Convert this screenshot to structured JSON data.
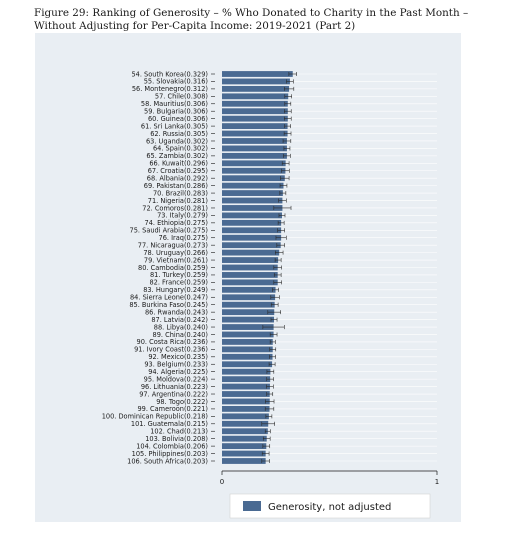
{
  "caption": "Figure 29: Ranking of Generosity – % Who Donated to Charity in the Past Month – Without Adjusting for Per-Capita Income: 2019-2021 (Part 2)",
  "chart_data": {
    "type": "bar",
    "orientation": "horizontal",
    "categories": [
      "54. South Korea(0.329)",
      "55. Slovakia(0.316)",
      "56. Montenegro(0.312)",
      "57. Chile(0.308)",
      "58. Mauritius(0.306)",
      "59. Bulgaria(0.306)",
      "60. Guinea(0.306)",
      "61. Sri Lanka(0.305)",
      "62. Russia(0.305)",
      "63. Uganda(0.302)",
      "64. Spain(0.302)",
      "65. Zambia(0.302)",
      "66. Kuwait(0.296)",
      "67. Croatia(0.295)",
      "68. Albania(0.292)",
      "69. Pakistan(0.286)",
      "70. Brazil(0.283)",
      "71. Nigeria(0.281)",
      "72. Comoros(0.281)",
      "73. Italy(0.279)",
      "74. Ethiopia(0.275)",
      "75. Saudi Arabia(0.275)",
      "76. Iraq(0.275)",
      "77. Nicaragua(0.273)",
      "78. Uruguay(0.266)",
      "79. Vietnam(0.261)",
      "80. Cambodia(0.259)",
      "81. Turkey(0.259)",
      "82. France(0.259)",
      "83. Hungary(0.249)",
      "84. Sierra Leone(0.247)",
      "85. Burkina Faso(0.245)",
      "86. Rwanda(0.243)",
      "87. Latvia(0.242)",
      "88. Libya(0.240)",
      "89. China(0.240)",
      "90. Costa Rica(0.236)",
      "91. Ivory Coast(0.236)",
      "92. Mexico(0.235)",
      "93. Belgium(0.233)",
      "94. Algeria(0.225)",
      "95. Moldova(0.224)",
      "96. Lithuania(0.223)",
      "97. Argentina(0.222)",
      "98. Togo(0.222)",
      "99. Cameroon(0.221)",
      "100. Dominican Republic(0.218)",
      "101. Guatemala(0.215)",
      "102. Chad(0.213)",
      "103. Bolivia(0.208)",
      "104. Colombia(0.206)",
      "105. Philippines(0.203)",
      "106. South Africa(0.203)"
    ],
    "series": [
      {
        "name": "Generosity, not adjusted",
        "values": [
          0.329,
          0.316,
          0.312,
          0.308,
          0.306,
          0.306,
          0.306,
          0.305,
          0.305,
          0.302,
          0.302,
          0.302,
          0.296,
          0.295,
          0.292,
          0.286,
          0.283,
          0.281,
          0.281,
          0.279,
          0.275,
          0.275,
          0.275,
          0.273,
          0.266,
          0.261,
          0.259,
          0.259,
          0.259,
          0.249,
          0.247,
          0.245,
          0.243,
          0.242,
          0.24,
          0.24,
          0.236,
          0.236,
          0.235,
          0.233,
          0.225,
          0.224,
          0.223,
          0.222,
          0.222,
          0.221,
          0.218,
          0.215,
          0.213,
          0.208,
          0.206,
          0.203,
          0.203
        ],
        "ci_half_width": [
          0.018,
          0.016,
          0.022,
          0.016,
          0.014,
          0.016,
          0.016,
          0.014,
          0.016,
          0.018,
          0.014,
          0.016,
          0.016,
          0.018,
          0.02,
          0.016,
          0.014,
          0.018,
          0.04,
          0.014,
          0.014,
          0.016,
          0.024,
          0.018,
          0.018,
          0.014,
          0.018,
          0.016,
          0.018,
          0.014,
          0.02,
          0.016,
          0.03,
          0.014,
          0.05,
          0.016,
          0.012,
          0.014,
          0.014,
          0.014,
          0.016,
          0.016,
          0.016,
          0.014,
          0.02,
          0.02,
          0.014,
          0.03,
          0.012,
          0.016,
          0.016,
          0.016,
          0.018
        ],
        "color": "#4a6a92"
      }
    ],
    "xlim": [
      0,
      1
    ],
    "xticks": [
      "0",
      "1"
    ],
    "legend_position": "bottom",
    "grid": true,
    "colors": {
      "panel": "#e9eef3",
      "grid": "#ffffff",
      "bar": "#4a6a92",
      "errorbar": "#2b2b2b"
    }
  }
}
